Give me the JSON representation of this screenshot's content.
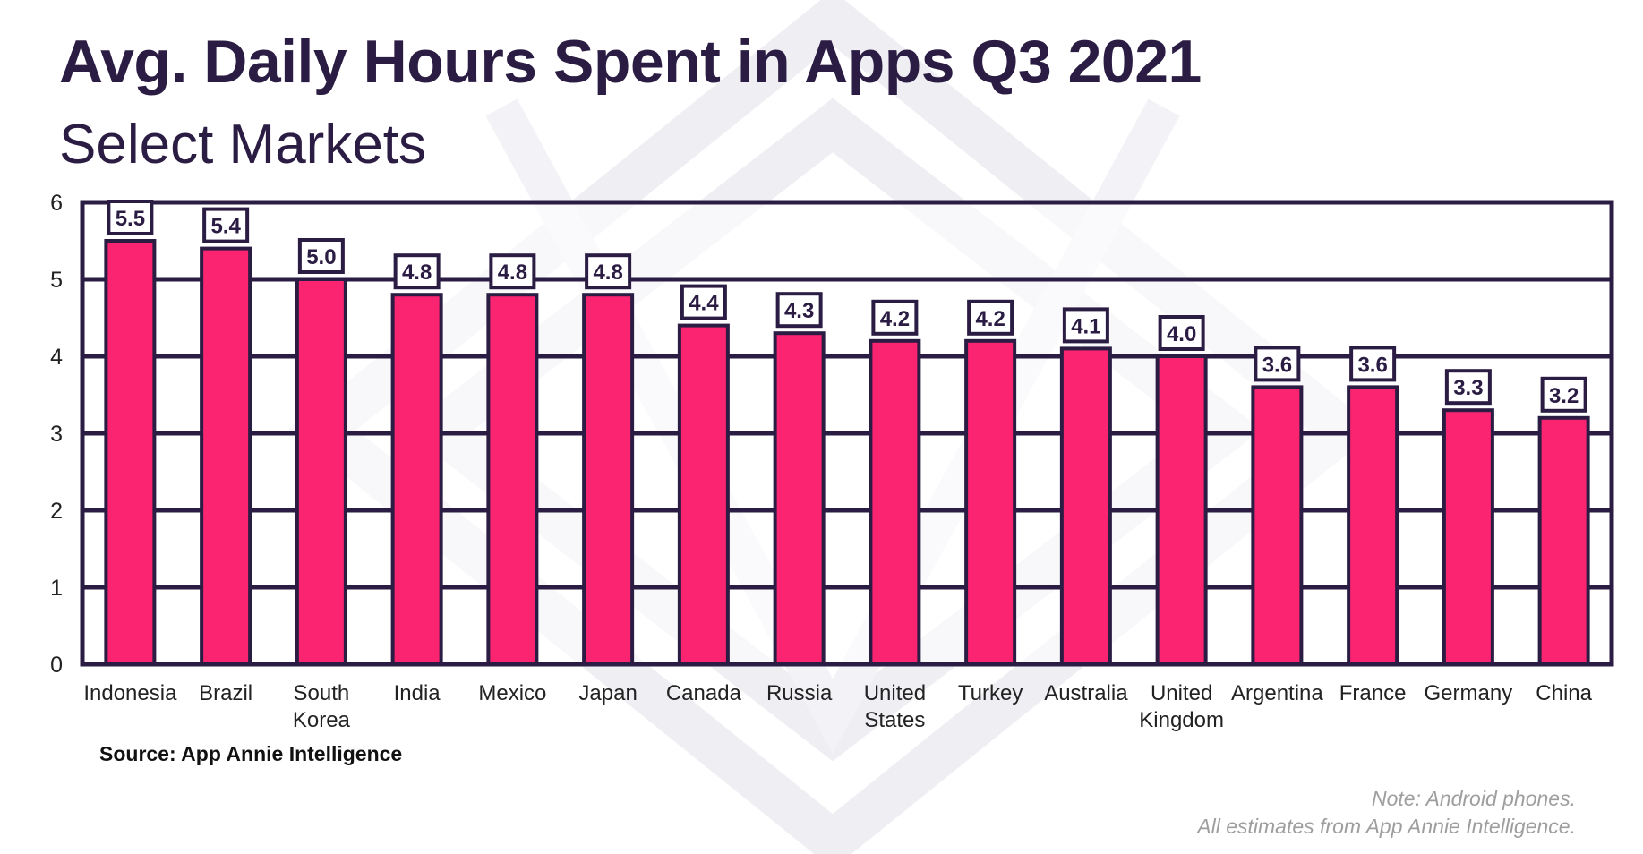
{
  "chart_data": {
    "type": "bar",
    "title": "Avg. Daily Hours Spent in Apps Q3 2021",
    "subtitle": "Select Markets",
    "categories": [
      [
        "Indonesia"
      ],
      [
        "Brazil"
      ],
      [
        "South",
        "Korea"
      ],
      [
        "India"
      ],
      [
        "Mexico"
      ],
      [
        "Japan"
      ],
      [
        "Canada"
      ],
      [
        "Russia"
      ],
      [
        "United",
        "States"
      ],
      [
        "Turkey"
      ],
      [
        "Australia"
      ],
      [
        "United",
        "Kingdom"
      ],
      [
        "Argentina"
      ],
      [
        "France"
      ],
      [
        "Germany"
      ],
      [
        "China"
      ]
    ],
    "values": [
      5.5,
      5.4,
      5.0,
      4.8,
      4.8,
      4.8,
      4.4,
      4.3,
      4.2,
      4.2,
      4.1,
      4.0,
      3.6,
      3.6,
      3.3,
      3.2
    ],
    "data_labels": [
      "5.5",
      "5.4",
      "5.0",
      "4.8",
      "4.8",
      "4.8",
      "4.4",
      "4.3",
      "4.2",
      "4.2",
      "4.1",
      "4.0",
      "3.6",
      "3.6",
      "3.3",
      "3.2"
    ],
    "yticks": [
      "0",
      "1",
      "2",
      "3",
      "4",
      "5",
      "6"
    ],
    "ylim": [
      0,
      6
    ],
    "xlabel": "",
    "ylabel": "",
    "grid": true,
    "legend": "none"
  },
  "footer": {
    "source": "Source: App Annie Intelligence",
    "note_lines": [
      "Note: Android phones.",
      "All estimates from App Annie Intelligence."
    ]
  },
  "colors": {
    "bar": "#fa2470",
    "outline": "#2b1c43",
    "title": "#2b1c43",
    "note": "#9e9e9e",
    "watermark": "#eeedf2"
  }
}
